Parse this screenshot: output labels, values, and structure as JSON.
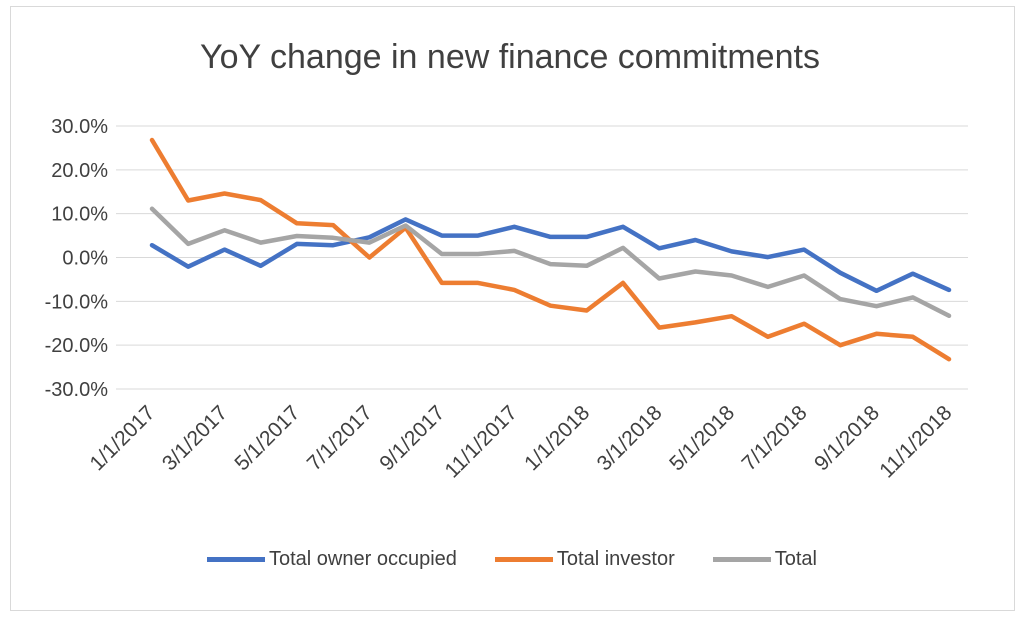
{
  "chart_data": {
    "type": "line",
    "title": "YoY change in new finance commitments",
    "xlabel": "",
    "ylabel": "",
    "ylim": [
      -0.3,
      0.3
    ],
    "yticks": [
      {
        "value": 0.3,
        "label": "30.0%"
      },
      {
        "value": 0.2,
        "label": "20.0%"
      },
      {
        "value": 0.1,
        "label": "10.0%"
      },
      {
        "value": 0.0,
        "label": "0.0%"
      },
      {
        "value": -0.1,
        "label": "-10.0%"
      },
      {
        "value": -0.2,
        "label": "-20.0%"
      },
      {
        "value": -0.3,
        "label": "-30.0%"
      }
    ],
    "grid": true,
    "legend_position": "bottom",
    "x": [
      "1/1/2017",
      "2/1/2017",
      "3/1/2017",
      "4/1/2017",
      "5/1/2017",
      "6/1/2017",
      "7/1/2017",
      "8/1/2017",
      "9/1/2017",
      "10/1/2017",
      "11/1/2017",
      "12/1/2017",
      "1/1/2018",
      "2/1/2018",
      "3/1/2018",
      "4/1/2018",
      "5/1/2018",
      "6/1/2018",
      "7/1/2018",
      "8/1/2018",
      "9/1/2018",
      "10/1/2018",
      "11/1/2018"
    ],
    "x_tick_labels": [
      "1/1/2017",
      "3/1/2017",
      "5/1/2017",
      "7/1/2017",
      "9/1/2017",
      "11/1/2017",
      "1/1/2018",
      "3/1/2018",
      "5/1/2018",
      "7/1/2018",
      "9/1/2018",
      "11/1/2018"
    ],
    "series": [
      {
        "name": "Total owner occupied",
        "color": "#4472c4",
        "values": [
          0.028,
          -0.021,
          0.018,
          -0.019,
          0.031,
          0.028,
          0.046,
          0.087,
          0.05,
          0.05,
          0.07,
          0.047,
          0.047,
          0.07,
          0.021,
          0.04,
          0.014,
          0.001,
          0.018,
          -0.035,
          -0.076,
          -0.037,
          -0.074
        ]
      },
      {
        "name": "Total investor",
        "color": "#ed7d31",
        "values": [
          0.268,
          0.13,
          0.146,
          0.131,
          0.078,
          0.074,
          0.0,
          0.068,
          -0.058,
          -0.058,
          -0.074,
          -0.11,
          -0.121,
          -0.058,
          -0.16,
          -0.148,
          -0.134,
          -0.181,
          -0.151,
          -0.2,
          -0.174,
          -0.181,
          -0.232
        ]
      },
      {
        "name": "Total",
        "color": "#a5a5a5",
        "values": [
          0.111,
          0.031,
          0.062,
          0.034,
          0.049,
          0.045,
          0.034,
          0.073,
          0.008,
          0.008,
          0.015,
          -0.015,
          -0.019,
          0.022,
          -0.048,
          -0.032,
          -0.041,
          -0.067,
          -0.041,
          -0.095,
          -0.111,
          -0.091,
          -0.133
        ]
      }
    ]
  }
}
